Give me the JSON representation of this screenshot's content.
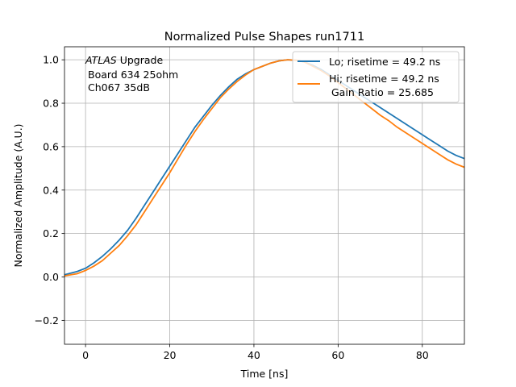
{
  "chart_data": {
    "type": "line",
    "title": "Normalized Pulse Shapes run1711",
    "xlabel": "Time [ns]",
    "ylabel": "Normalized Amplitude (A.U.)",
    "xlim": [
      -5,
      90
    ],
    "ylim": [
      -0.31,
      1.06
    ],
    "xticks": [
      0,
      20,
      40,
      60,
      80
    ],
    "yticks": [
      -0.2,
      0.0,
      0.2,
      0.4,
      0.6,
      0.8,
      1.0
    ],
    "grid": true,
    "legend_position": "top-right",
    "annotation": {
      "italic": "ATLAS",
      "line1_rest": " Upgrade",
      "line2": "Board 634 25ohm",
      "line3": "Ch067 35dB"
    },
    "series": [
      {
        "name": "Lo; risetime = 49.2 ns",
        "color": "#1f77b4",
        "x": [
          -5,
          -2,
          0,
          2,
          4,
          6,
          8,
          10,
          12,
          14,
          16,
          18,
          20,
          22,
          24,
          26,
          28,
          30,
          32,
          34,
          36,
          38,
          40,
          42,
          44,
          46,
          48,
          50,
          52,
          54,
          56,
          58,
          60,
          62,
          64,
          66,
          68,
          70,
          72,
          74,
          76,
          78,
          80,
          82,
          84,
          86,
          88,
          90
        ],
        "y": [
          0.01,
          0.025,
          0.04,
          0.065,
          0.095,
          0.13,
          0.17,
          0.215,
          0.27,
          0.33,
          0.39,
          0.45,
          0.51,
          0.57,
          0.63,
          0.69,
          0.74,
          0.79,
          0.835,
          0.875,
          0.91,
          0.935,
          0.955,
          0.97,
          0.985,
          0.995,
          1.0,
          0.998,
          0.99,
          0.975,
          0.955,
          0.93,
          0.905,
          0.88,
          0.855,
          0.83,
          0.805,
          0.78,
          0.755,
          0.73,
          0.705,
          0.68,
          0.655,
          0.63,
          0.605,
          0.58,
          0.56,
          0.545
        ]
      },
      {
        "name": "Hi; risetime = 49.2 ns",
        "name_line2": "Gain Ratio = 25.685",
        "color": "#ff7f0e",
        "x": [
          -5,
          -2,
          0,
          2,
          4,
          6,
          8,
          10,
          12,
          14,
          16,
          18,
          20,
          22,
          24,
          26,
          28,
          30,
          32,
          34,
          36,
          38,
          40,
          42,
          44,
          46,
          48,
          50,
          52,
          54,
          56,
          58,
          60,
          62,
          64,
          66,
          68,
          70,
          72,
          74,
          76,
          78,
          80,
          82,
          84,
          86,
          88,
          90
        ],
        "y": [
          0.005,
          0.015,
          0.03,
          0.05,
          0.075,
          0.11,
          0.145,
          0.19,
          0.24,
          0.3,
          0.36,
          0.42,
          0.48,
          0.545,
          0.61,
          0.67,
          0.725,
          0.775,
          0.825,
          0.865,
          0.9,
          0.93,
          0.955,
          0.97,
          0.985,
          0.995,
          1.0,
          0.998,
          0.99,
          0.97,
          0.95,
          0.925,
          0.895,
          0.865,
          0.835,
          0.805,
          0.775,
          0.745,
          0.72,
          0.69,
          0.665,
          0.64,
          0.615,
          0.59,
          0.565,
          0.54,
          0.52,
          0.505
        ]
      }
    ]
  }
}
